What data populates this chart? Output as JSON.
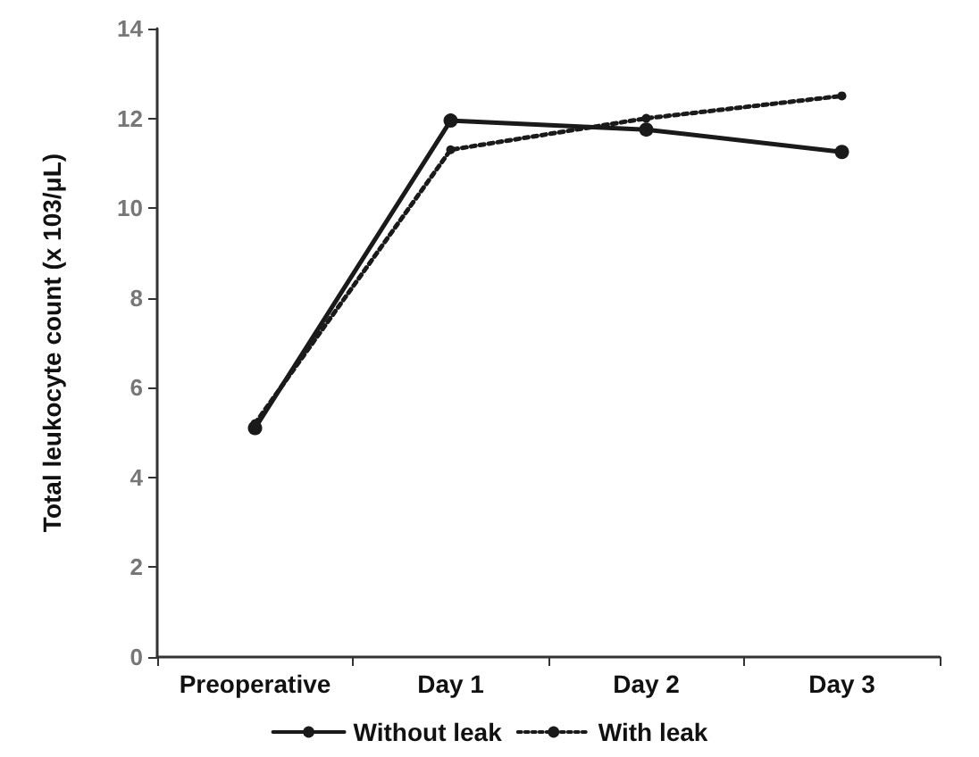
{
  "chart_data": {
    "type": "line",
    "ylabel": "Total leukocyte count (x 103/μL)",
    "categories": [
      "Preoperative",
      "Day 1",
      "Day 2",
      "Day 3"
    ],
    "series": [
      {
        "name": "Without leak",
        "color": "#1a1a1a",
        "values": [
          5.1,
          11.95,
          11.75,
          11.25
        ],
        "line_style": "solid"
      },
      {
        "name": "With leak",
        "color": "#1a1a1a",
        "values": [
          5.2,
          11.3,
          12.0,
          12.5
        ],
        "line_style": "dotted"
      }
    ],
    "ylim": [
      0,
      14
    ],
    "yticks": [
      0,
      2,
      4,
      6,
      8,
      10,
      12,
      14
    ],
    "grid": false,
    "legend": "bottom",
    "marker": "circle"
  }
}
